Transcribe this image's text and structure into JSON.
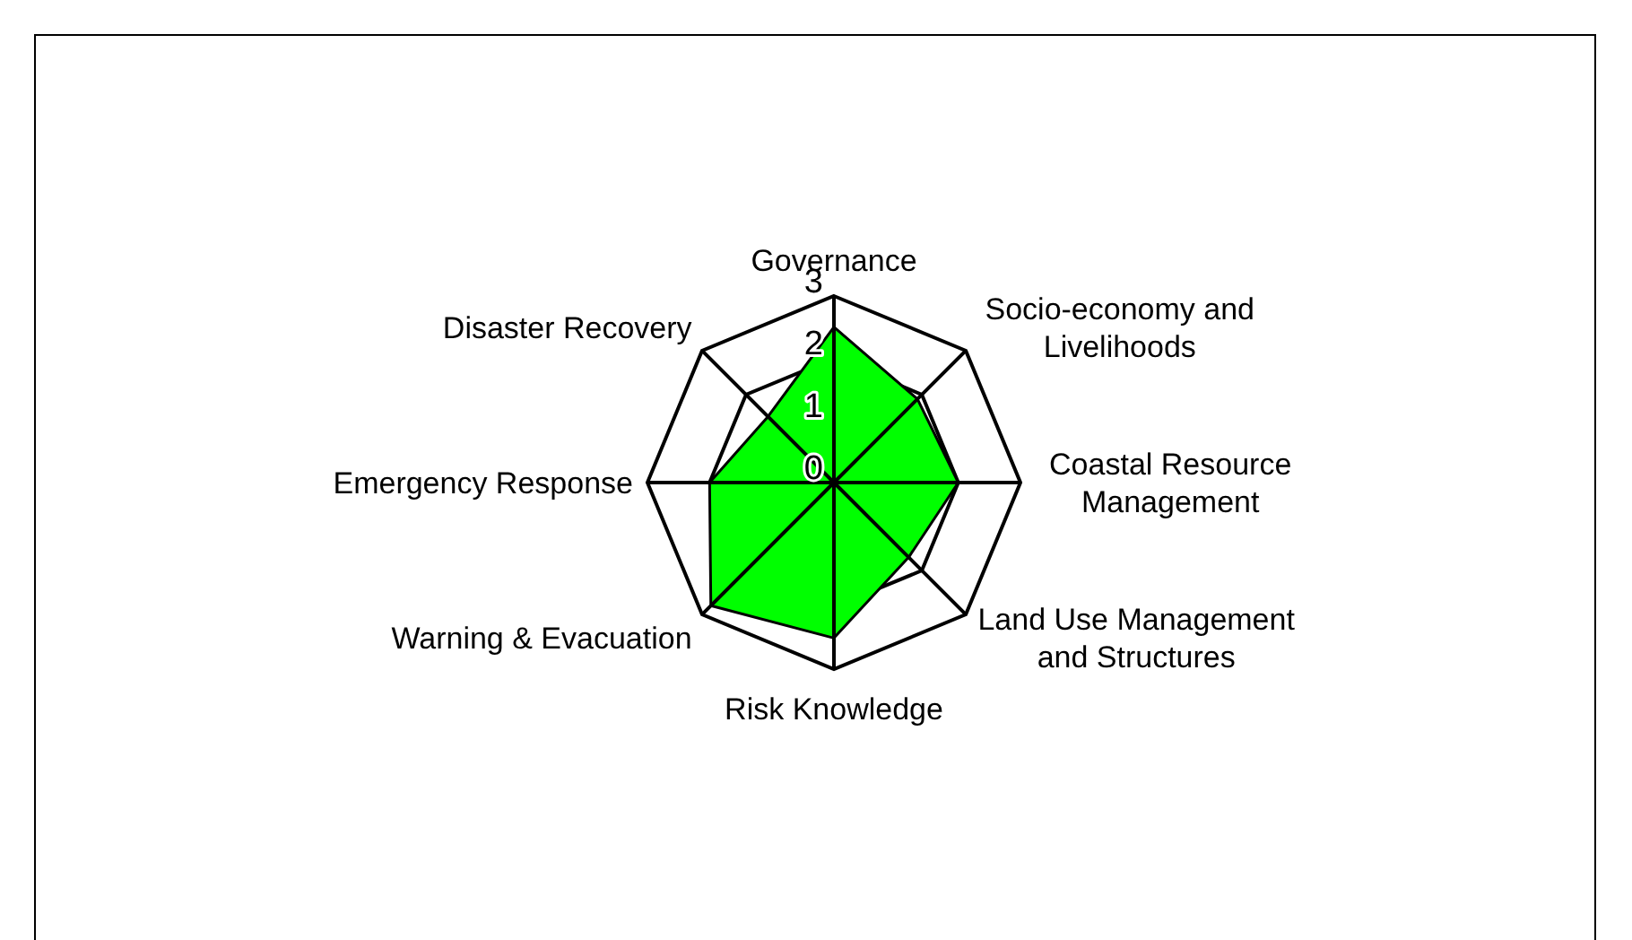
{
  "chart_data": {
    "type": "radar",
    "categories": [
      "Governance",
      "Socio-economy and Livelihoods",
      "Coastal Resource Management",
      "Land Use Management and Structures",
      "Risk Knowledge",
      "Warning & Evacuation",
      "Emergency Response",
      "Disaster Recovery"
    ],
    "series": [
      {
        "color": "#00ff00",
        "values": [
          2.5,
          1.9,
          2,
          1.7,
          2.5,
          2.8,
          2,
          1.5
        ]
      }
    ],
    "ylim": [
      0,
      3
    ],
    "yticks": [
      0,
      1,
      2,
      3
    ],
    "grid": true
  }
}
